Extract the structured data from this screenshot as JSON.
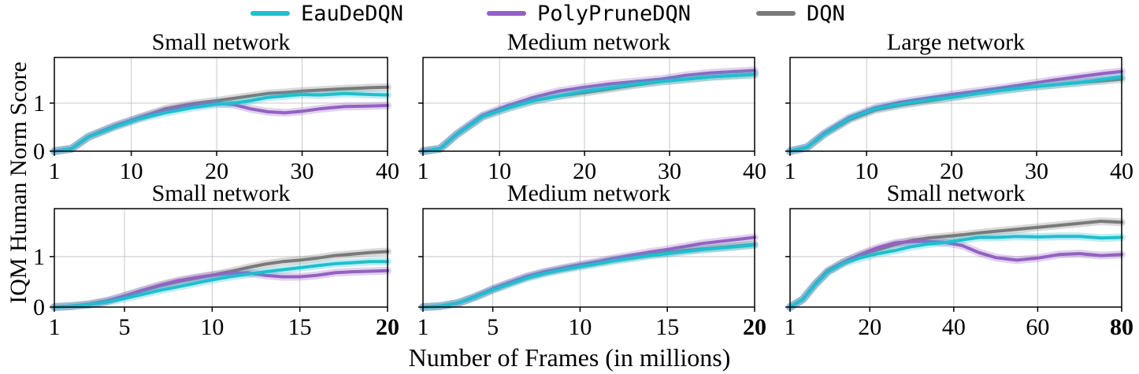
{
  "legend": [
    {
      "name": "EauDeDQN",
      "color": "#1fbfcf"
    },
    {
      "name": "PolyPruneDQN",
      "color": "#9461c2"
    },
    {
      "name": "DQN",
      "color": "#7a7a7a"
    }
  ],
  "xlabel": "Number of Frames (in millions)",
  "ylabel": "IQM Human Norm Score",
  "chart_data": [
    {
      "type": "line",
      "title": "Small network",
      "xlim": [
        1,
        40
      ],
      "ylim": [
        0,
        1.95
      ],
      "xticks": [
        1,
        10,
        20,
        30,
        40
      ],
      "xtick_labels": [
        "1",
        "10",
        "20",
        "30",
        "40"
      ],
      "yticks": [
        0,
        1
      ],
      "ytick_labels": [
        "0",
        "1"
      ],
      "grid": true,
      "series": [
        {
          "name": "EauDeDQN",
          "x": [
            1,
            3,
            5,
            8,
            11,
            14,
            17,
            20,
            22,
            24,
            26,
            28,
            30,
            32,
            35,
            38,
            40
          ],
          "y": [
            0,
            0.05,
            0.3,
            0.5,
            0.68,
            0.8,
            0.9,
            0.98,
            1.0,
            1.05,
            1.12,
            1.15,
            1.18,
            1.17,
            1.2,
            1.18,
            1.17
          ]
        },
        {
          "name": "PolyPruneDQN",
          "x": [
            1,
            3,
            5,
            8,
            11,
            14,
            17,
            20,
            22,
            24,
            26,
            28,
            30,
            32,
            35,
            38,
            40
          ],
          "y": [
            0,
            0.05,
            0.3,
            0.52,
            0.7,
            0.85,
            0.95,
            1.0,
            0.97,
            0.88,
            0.82,
            0.8,
            0.83,
            0.88,
            0.93,
            0.94,
            0.95
          ]
        },
        {
          "name": "DQN",
          "x": [
            1,
            3,
            5,
            8,
            11,
            14,
            17,
            20,
            22,
            24,
            26,
            28,
            30,
            32,
            35,
            38,
            40
          ],
          "y": [
            0,
            0.05,
            0.3,
            0.52,
            0.7,
            0.88,
            0.98,
            1.05,
            1.1,
            1.15,
            1.2,
            1.22,
            1.25,
            1.27,
            1.3,
            1.32,
            1.33
          ]
        }
      ]
    },
    {
      "type": "line",
      "title": "Medium network",
      "xlim": [
        1,
        40
      ],
      "ylim": [
        0,
        1.95
      ],
      "xticks": [
        1,
        10,
        20,
        30,
        40
      ],
      "xtick_labels": [
        "1",
        "10",
        "20",
        "30",
        "40"
      ],
      "yticks": [
        0,
        1
      ],
      "ytick_labels": [
        "",
        ""
      ],
      "grid": true,
      "series": [
        {
          "name": "EauDeDQN",
          "x": [
            1,
            3,
            5,
            8,
            11,
            14,
            17,
            20,
            23,
            26,
            29,
            32,
            35,
            38,
            40
          ],
          "y": [
            0,
            0.05,
            0.35,
            0.72,
            0.9,
            1.05,
            1.15,
            1.25,
            1.32,
            1.4,
            1.45,
            1.5,
            1.55,
            1.58,
            1.6
          ]
        },
        {
          "name": "PolyPruneDQN",
          "x": [
            1,
            3,
            5,
            8,
            11,
            14,
            17,
            20,
            23,
            26,
            29,
            32,
            35,
            38,
            40
          ],
          "y": [
            0,
            0.05,
            0.36,
            0.74,
            0.95,
            1.12,
            1.25,
            1.33,
            1.4,
            1.45,
            1.5,
            1.58,
            1.63,
            1.66,
            1.68
          ]
        },
        {
          "name": "DQN",
          "x": [
            1,
            3,
            5,
            8,
            11,
            14,
            17,
            20,
            23,
            26,
            29,
            32,
            35,
            38,
            40
          ],
          "y": [
            0,
            0.05,
            0.35,
            0.72,
            0.9,
            1.05,
            1.15,
            1.22,
            1.3,
            1.38,
            1.45,
            1.5,
            1.55,
            1.58,
            1.6
          ]
        }
      ]
    },
    {
      "type": "line",
      "title": "Large network",
      "xlim": [
        1,
        40
      ],
      "ylim": [
        0,
        1.95
      ],
      "xticks": [
        1,
        10,
        20,
        30,
        40
      ],
      "xtick_labels": [
        "1",
        "10",
        "20",
        "30",
        "40"
      ],
      "yticks": [
        0,
        1
      ],
      "ytick_labels": [
        "",
        ""
      ],
      "grid": true,
      "series": [
        {
          "name": "EauDeDQN",
          "x": [
            1,
            3,
            5,
            8,
            11,
            14,
            17,
            20,
            23,
            26,
            29,
            32,
            35,
            38,
            40
          ],
          "y": [
            0,
            0.08,
            0.35,
            0.68,
            0.88,
            0.98,
            1.06,
            1.12,
            1.2,
            1.27,
            1.33,
            1.38,
            1.43,
            1.5,
            1.55
          ]
        },
        {
          "name": "PolyPruneDQN",
          "x": [
            1,
            3,
            5,
            8,
            11,
            14,
            17,
            20,
            23,
            26,
            29,
            32,
            35,
            38,
            40
          ],
          "y": [
            0,
            0.08,
            0.37,
            0.7,
            0.9,
            1.02,
            1.1,
            1.18,
            1.25,
            1.32,
            1.4,
            1.48,
            1.55,
            1.62,
            1.66
          ]
        },
        {
          "name": "DQN",
          "x": [
            1,
            3,
            5,
            8,
            11,
            14,
            17,
            20,
            23,
            26,
            29,
            32,
            35,
            38,
            40
          ],
          "y": [
            0,
            0.08,
            0.35,
            0.66,
            0.86,
            0.96,
            1.04,
            1.12,
            1.2,
            1.27,
            1.33,
            1.38,
            1.43,
            1.47,
            1.5
          ]
        }
      ]
    },
    {
      "type": "line",
      "title": "Small network",
      "xlim": [
        1,
        20
      ],
      "ylim": [
        0,
        1.95
      ],
      "xticks": [
        1,
        5,
        10,
        15,
        20
      ],
      "xtick_labels": [
        "1",
        "5",
        "10",
        "15",
        "20"
      ],
      "bold_last_xtick": true,
      "yticks": [
        0,
        1
      ],
      "ytick_labels": [
        "0",
        "1"
      ],
      "grid": true,
      "series": [
        {
          "name": "EauDeDQN",
          "x": [
            1,
            2,
            3,
            4,
            5,
            6,
            7,
            8,
            9,
            10,
            11,
            12,
            13,
            14,
            15,
            16,
            17,
            18,
            19,
            20
          ],
          "y": [
            0,
            0.02,
            0.05,
            0.1,
            0.17,
            0.25,
            0.33,
            0.4,
            0.47,
            0.54,
            0.6,
            0.65,
            0.7,
            0.74,
            0.78,
            0.82,
            0.86,
            0.88,
            0.9,
            0.9
          ]
        },
        {
          "name": "PolyPruneDQN",
          "x": [
            1,
            2,
            3,
            4,
            5,
            6,
            7,
            8,
            9,
            10,
            11,
            12,
            13,
            14,
            15,
            16,
            17,
            18,
            19,
            20
          ],
          "y": [
            0,
            0.02,
            0.05,
            0.12,
            0.22,
            0.33,
            0.43,
            0.52,
            0.58,
            0.63,
            0.67,
            0.68,
            0.63,
            0.6,
            0.6,
            0.63,
            0.68,
            0.7,
            0.71,
            0.72
          ]
        },
        {
          "name": "DQN",
          "x": [
            1,
            2,
            3,
            4,
            5,
            6,
            7,
            8,
            9,
            10,
            11,
            12,
            13,
            14,
            15,
            16,
            17,
            18,
            19,
            20
          ],
          "y": [
            0,
            0.02,
            0.06,
            0.12,
            0.22,
            0.32,
            0.42,
            0.5,
            0.57,
            0.63,
            0.7,
            0.78,
            0.85,
            0.9,
            0.93,
            0.97,
            1.02,
            1.05,
            1.08,
            1.1
          ]
        }
      ]
    },
    {
      "type": "line",
      "title": "Medium network",
      "xlim": [
        1,
        20
      ],
      "ylim": [
        0,
        1.95
      ],
      "xticks": [
        1,
        5,
        10,
        15,
        20
      ],
      "xtick_labels": [
        "1",
        "5",
        "10",
        "15",
        "20"
      ],
      "bold_last_xtick": true,
      "yticks": [
        0,
        1
      ],
      "ytick_labels": [
        "",
        ""
      ],
      "grid": true,
      "series": [
        {
          "name": "EauDeDQN",
          "x": [
            1,
            2,
            3,
            4,
            5,
            6,
            7,
            8,
            9,
            10,
            11,
            12,
            13,
            14,
            15,
            16,
            17,
            18,
            19,
            20
          ],
          "y": [
            0,
            0.02,
            0.08,
            0.2,
            0.34,
            0.46,
            0.58,
            0.67,
            0.74,
            0.8,
            0.86,
            0.92,
            0.97,
            1.02,
            1.06,
            1.1,
            1.14,
            1.17,
            1.2,
            1.23
          ]
        },
        {
          "name": "PolyPruneDQN",
          "x": [
            1,
            2,
            3,
            4,
            5,
            6,
            7,
            8,
            9,
            10,
            11,
            12,
            13,
            14,
            15,
            16,
            17,
            18,
            19,
            20
          ],
          "y": [
            0,
            0.02,
            0.08,
            0.21,
            0.36,
            0.49,
            0.61,
            0.7,
            0.77,
            0.84,
            0.9,
            0.97,
            1.03,
            1.09,
            1.14,
            1.2,
            1.26,
            1.3,
            1.34,
            1.38
          ]
        },
        {
          "name": "DQN",
          "x": [
            1,
            2,
            3,
            4,
            5,
            6,
            7,
            8,
            9,
            10,
            11,
            12,
            13,
            14,
            15,
            16,
            17,
            18,
            19,
            20
          ],
          "y": [
            0,
            0.02,
            0.08,
            0.2,
            0.35,
            0.48,
            0.6,
            0.69,
            0.76,
            0.82,
            0.88,
            0.94,
            0.99,
            1.04,
            1.08,
            1.12,
            1.15,
            1.18,
            1.21,
            1.24
          ]
        }
      ]
    },
    {
      "type": "line",
      "title": "Small network",
      "xlim": [
        1,
        80
      ],
      "ylim": [
        0,
        1.95
      ],
      "xticks": [
        1,
        20,
        40,
        60,
        80
      ],
      "xtick_labels": [
        "1",
        "20",
        "40",
        "60",
        "80"
      ],
      "bold_last_xtick": true,
      "yticks": [
        0,
        1
      ],
      "ytick_labels": [
        "",
        ""
      ],
      "grid": true,
      "series": [
        {
          "name": "EauDeDQN",
          "x": [
            1,
            4,
            7,
            10,
            14,
            18,
            22,
            26,
            30,
            34,
            38,
            42,
            46,
            50,
            55,
            60,
            65,
            70,
            75,
            80
          ],
          "y": [
            0,
            0.15,
            0.45,
            0.7,
            0.88,
            0.98,
            1.06,
            1.12,
            1.2,
            1.25,
            1.28,
            1.33,
            1.38,
            1.38,
            1.4,
            1.39,
            1.4,
            1.4,
            1.37,
            1.38
          ]
        },
        {
          "name": "PolyPruneDQN",
          "x": [
            1,
            4,
            7,
            10,
            14,
            18,
            22,
            26,
            30,
            34,
            38,
            42,
            46,
            50,
            55,
            60,
            65,
            70,
            75,
            80
          ],
          "y": [
            0,
            0.15,
            0.45,
            0.7,
            0.9,
            1.05,
            1.18,
            1.27,
            1.3,
            1.3,
            1.28,
            1.22,
            1.08,
            0.98,
            0.93,
            0.97,
            1.04,
            1.06,
            1.02,
            1.04
          ]
        },
        {
          "name": "DQN",
          "x": [
            1,
            4,
            7,
            10,
            14,
            18,
            22,
            26,
            30,
            34,
            38,
            42,
            46,
            50,
            55,
            60,
            65,
            70,
            75,
            80
          ],
          "y": [
            0,
            0.15,
            0.46,
            0.72,
            0.9,
            1.04,
            1.14,
            1.24,
            1.32,
            1.37,
            1.4,
            1.43,
            1.47,
            1.5,
            1.54,
            1.58,
            1.62,
            1.66,
            1.7,
            1.68
          ]
        }
      ]
    }
  ]
}
